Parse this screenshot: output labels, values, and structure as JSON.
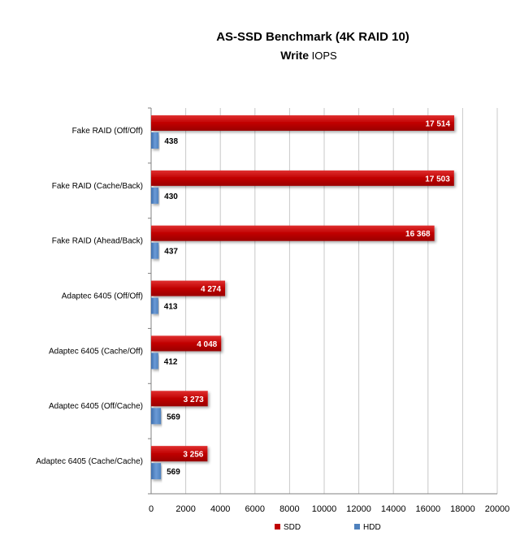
{
  "chart_data": {
    "type": "bar",
    "orientation": "horizontal",
    "title": "AS-SSD Benchmark (4K RAID 10)",
    "subtitle_bold": "Write",
    "subtitle_rest": " IOPS",
    "categories": [
      "Fake RAID (Off/Off)",
      "Fake RAID (Cache/Back)",
      "Fake RAID (Ahead/Back)",
      "Adaptec 6405 (Off/Off)",
      "Adaptec 6405 (Cache/Off)",
      "Adaptec 6405 (Off/Cache)",
      "Adaptec 6405 (Cache/Cache)"
    ],
    "series": [
      {
        "name": "SDD",
        "color": "#c00000",
        "values": [
          17514,
          17503,
          16368,
          4274,
          4048,
          3273,
          3256
        ],
        "labels": [
          "17 514",
          "17 503",
          "16 368",
          "4 274",
          "4 048",
          "3 273",
          "3 256"
        ]
      },
      {
        "name": "HDD",
        "color": "#4f81bd",
        "values": [
          438,
          430,
          437,
          413,
          412,
          569,
          569
        ],
        "labels": [
          "438",
          "430",
          "437",
          "413",
          "412",
          "569",
          "569"
        ]
      }
    ],
    "xlim": [
      0,
      20000
    ],
    "xticks": [
      0,
      2000,
      4000,
      6000,
      8000,
      10000,
      12000,
      14000,
      16000,
      18000,
      20000
    ],
    "xtick_labels": [
      "0",
      "2000",
      "4000",
      "6000",
      "8000",
      "10000",
      "12000",
      "14000",
      "16000",
      "18000",
      "20000"
    ],
    "grid": true,
    "legend_position": "bottom"
  }
}
